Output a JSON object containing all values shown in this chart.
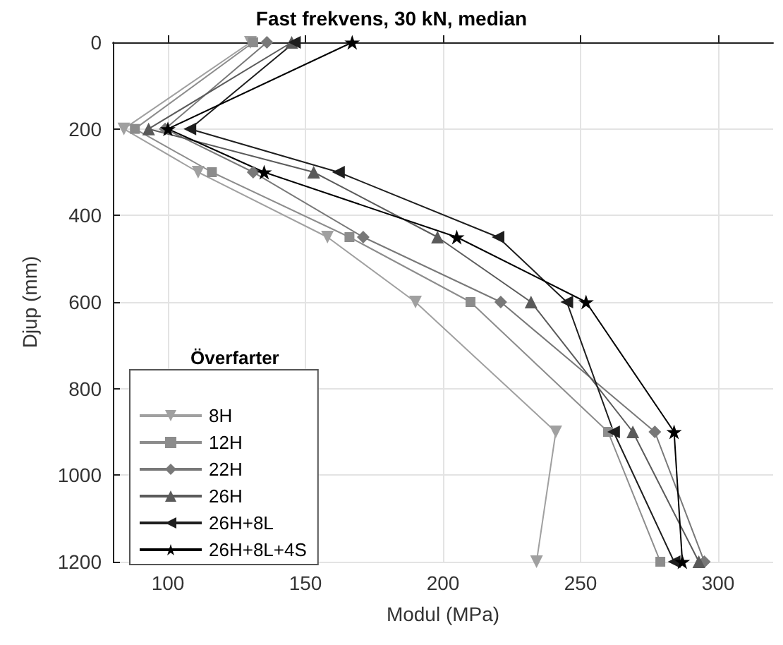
{
  "chart_data": {
    "type": "line",
    "title": "Fast frekvens, 30 kN, median",
    "xlabel": "Modul (MPa)",
    "ylabel": "Djup (mm)",
    "legend_title": "Överfarter",
    "legend": "bottom left",
    "grid": true,
    "xlim": [
      80,
      320
    ],
    "xticks": [
      100,
      150,
      200,
      250,
      300
    ],
    "ylim": [
      1200,
      0
    ],
    "yticks": [
      0,
      200,
      400,
      600,
      800,
      1000,
      1200
    ],
    "series": [
      {
        "name": "8H",
        "color": "#a0a0a0",
        "marker": "triangle-down",
        "x": [
          130,
          84,
          111,
          158,
          190,
          241,
          234
        ],
        "values": [
          0,
          200,
          300,
          450,
          600,
          900,
          1200
        ]
      },
      {
        "name": "12H",
        "color": "#8c8c8c",
        "marker": "square",
        "x": [
          131,
          88,
          116,
          166,
          210,
          260,
          279
        ],
        "values": [
          0,
          200,
          300,
          450,
          600,
          900,
          1200
        ]
      },
      {
        "name": "22H",
        "color": "#787878",
        "marker": "diamond",
        "x": [
          136,
          99,
          131,
          171,
          221,
          277,
          295
        ],
        "values": [
          0,
          200,
          300,
          450,
          600,
          900,
          1200
        ]
      },
      {
        "name": "26H",
        "color": "#5a5a5a",
        "marker": "triangle",
        "x": [
          145,
          93,
          153,
          198,
          232,
          269,
          293
        ],
        "values": [
          0,
          200,
          300,
          450,
          600,
          900,
          1200
        ]
      },
      {
        "name": "26H+8L",
        "color": "#1e1e1e",
        "marker": "triangle-left",
        "x": [
          146,
          108,
          162,
          220,
          245,
          262,
          284
        ],
        "values": [
          0,
          200,
          300,
          450,
          600,
          900,
          1200
        ]
      },
      {
        "name": "26H+8L+4S",
        "color": "#000000",
        "marker": "star",
        "x": [
          167,
          100,
          135,
          205,
          252,
          284,
          287
        ],
        "values": [
          0,
          200,
          300,
          450,
          600,
          900,
          1200
        ]
      }
    ]
  }
}
